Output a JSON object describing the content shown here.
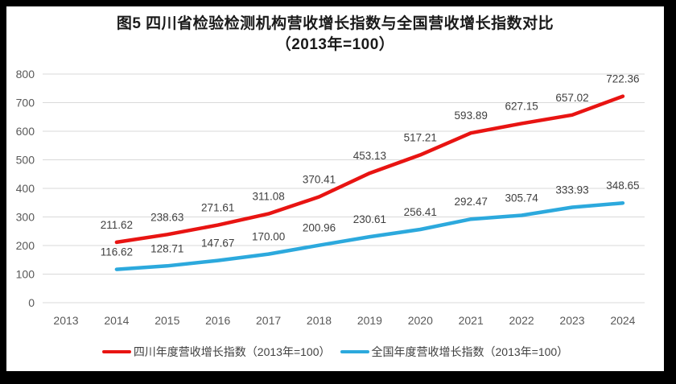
{
  "title": {
    "line1": "图5  四川省检验检测机构营收增长指数与全国营收增长指数对比",
    "line2": "（2013年=100）"
  },
  "chart_data": {
    "type": "line",
    "x": [
      "2013",
      "2014",
      "2015",
      "2016",
      "2017",
      "2018",
      "2019",
      "2020",
      "2021",
      "2022",
      "2023",
      "2024"
    ],
    "series": [
      {
        "name": "四川年度营收增长指数（2013年=100）",
        "color": "#e81412",
        "start_x": "2014",
        "values": [
          "211.62",
          "238.63",
          "271.61",
          "311.08",
          "370.41",
          "453.13",
          "517.21",
          "593.89",
          "627.15",
          "657.02",
          "722.36"
        ]
      },
      {
        "name": "全国年度营收增长指数（2013年=100）",
        "color": "#2ca9dd",
        "start_x": "2014",
        "values": [
          "116.62",
          "128.71",
          "147.67",
          "170.00",
          "200.96",
          "230.61",
          "256.41",
          "292.47",
          "305.74",
          "333.93",
          "348.65"
        ]
      }
    ],
    "ylim": [
      0,
      800
    ],
    "ytick_step": 100,
    "yticks": [
      "0",
      "100",
      "200",
      "300",
      "400",
      "500",
      "600",
      "700",
      "800"
    ],
    "xlabel": "",
    "ylabel": "",
    "grid": "horizontal",
    "legend_position": "bottom",
    "data_labels": true,
    "colors": {
      "grid_line": "#d9d9d9",
      "tick_text": "#595959",
      "data_label_text": "#404040",
      "title_text": "#1a1a1a",
      "plot_background": "#ffffff",
      "frame_border": "#000000"
    }
  }
}
